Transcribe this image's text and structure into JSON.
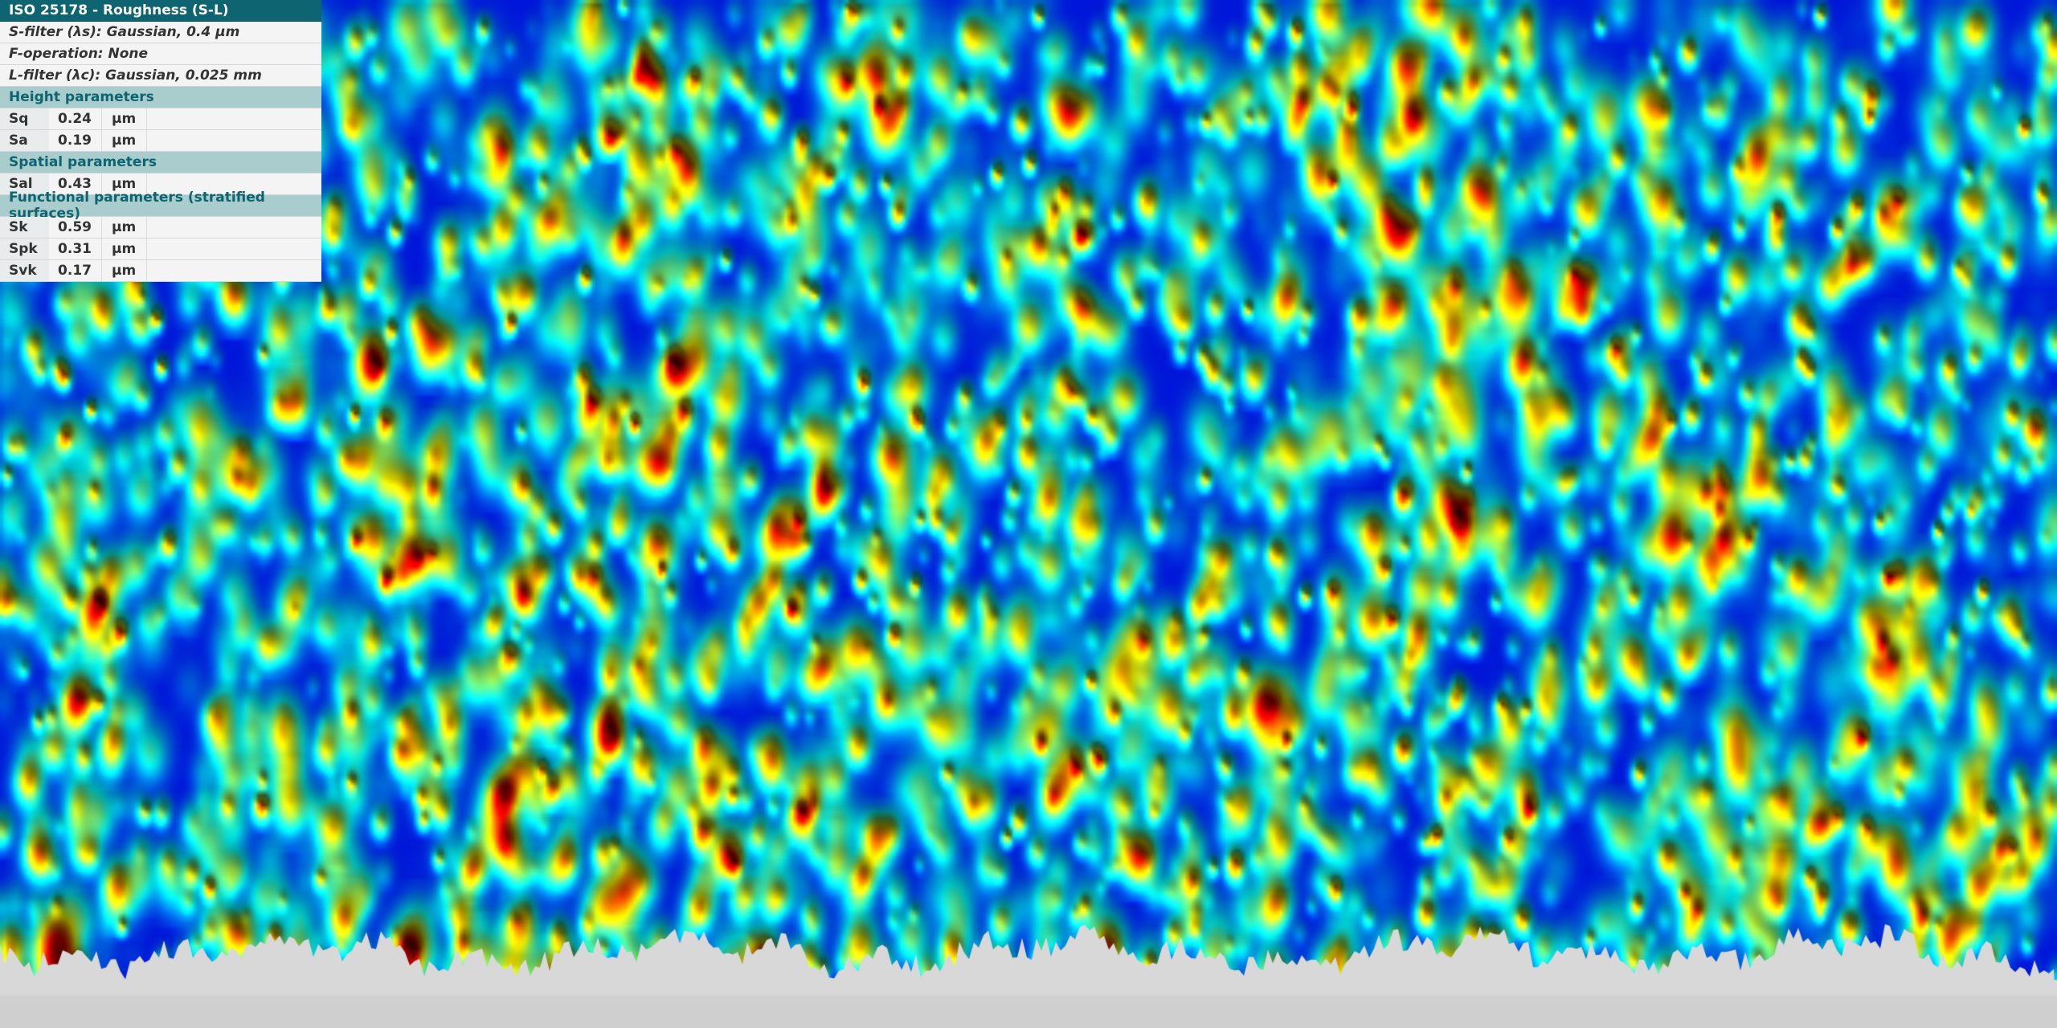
{
  "panel": {
    "title": "ISO 25178 - Roughness (S-L)",
    "s_filter": "S-filter (λs): Gaussian, 0.4 µm",
    "f_operation": "F-operation: None",
    "l_filter": "L-filter (λc): Gaussian, 0.025 mm",
    "sections": [
      {
        "title": "Height parameters",
        "params": [
          {
            "name": "Sq",
            "value": "0.24",
            "unit": "µm"
          },
          {
            "name": "Sa",
            "value": "0.19",
            "unit": "µm"
          }
        ]
      },
      {
        "title": "Spatial parameters",
        "params": [
          {
            "name": "Sal",
            "value": "0.43",
            "unit": "µm"
          }
        ]
      },
      {
        "title": "Functional parameters (stratified surfaces)",
        "params": [
          {
            "name": "Sk",
            "value": "0.59",
            "unit": "µm"
          },
          {
            "name": "Spk",
            "value": "0.31",
            "unit": "µm"
          },
          {
            "name": "Svk",
            "value": "0.17",
            "unit": "µm"
          }
        ]
      }
    ]
  },
  "view": {
    "colormap": "jet",
    "background": "#d8d8d8",
    "accent": "#0e6470"
  }
}
